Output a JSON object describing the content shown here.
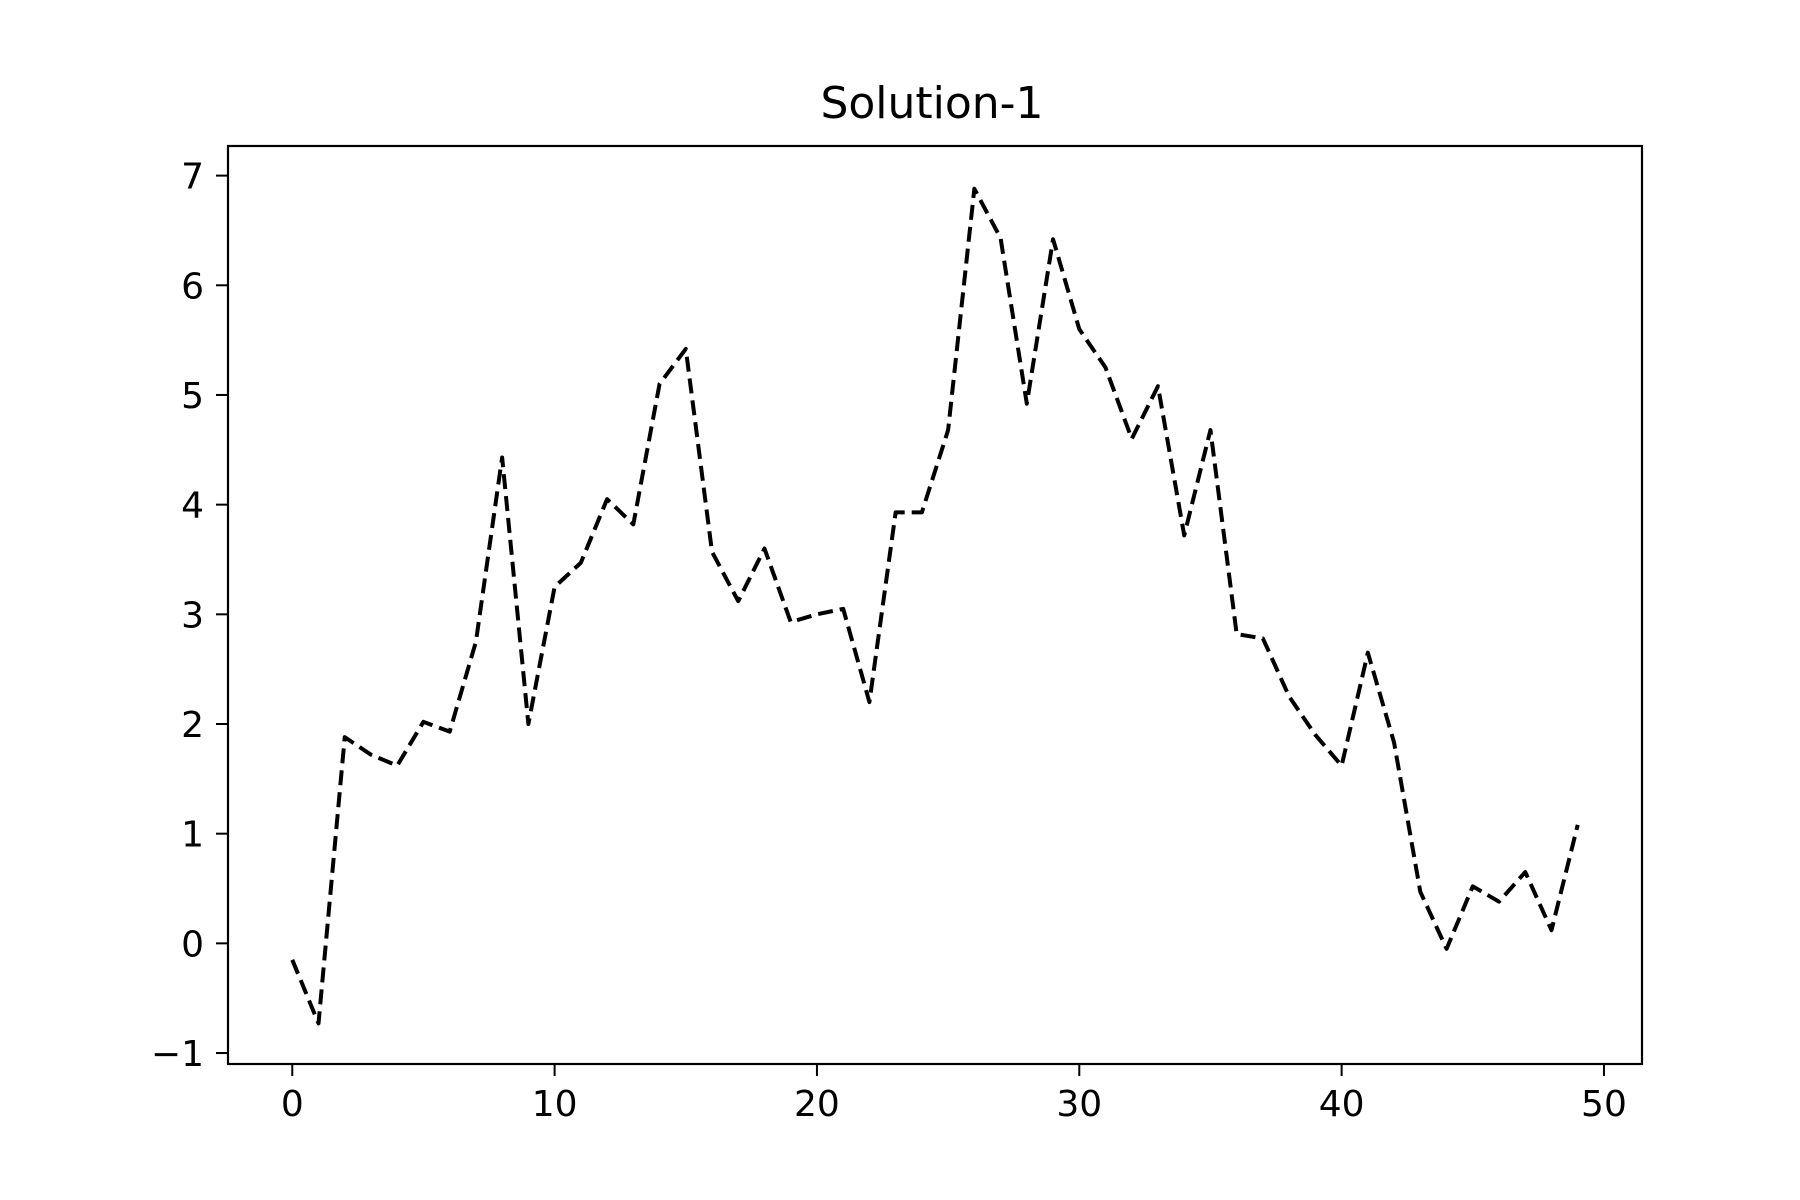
{
  "chart_data": {
    "type": "line",
    "title": "Solution-1",
    "xlabel": "",
    "ylabel": "",
    "xlim": [
      -2.45,
      51.45
    ],
    "ylim": [
      -1.1,
      7.27
    ],
    "xticks": [
      0,
      10,
      20,
      30,
      40,
      50
    ],
    "yticks": [
      -1,
      0,
      1,
      2,
      3,
      4,
      5,
      6,
      7
    ],
    "xtick_labels": [
      "0",
      "10",
      "20",
      "30",
      "40",
      "50"
    ],
    "ytick_labels": [
      "−1",
      "0",
      "1",
      "2",
      "3",
      "4",
      "5",
      "6",
      "7"
    ],
    "grid": false,
    "legend": "none",
    "series": [
      {
        "color": "#000000",
        "line_style": "dashed",
        "x": [
          0,
          1,
          2,
          3,
          4,
          5,
          6,
          7,
          8,
          9,
          10,
          11,
          12,
          13,
          14,
          15,
          16,
          17,
          18,
          19,
          20,
          21,
          22,
          23,
          24,
          25,
          26,
          27,
          28,
          29,
          30,
          31,
          32,
          33,
          34,
          35,
          36,
          37,
          38,
          39,
          40,
          41,
          42,
          43,
          44,
          45,
          46,
          47,
          48,
          49
        ],
        "values": [
          -0.15,
          -0.73,
          1.88,
          1.72,
          1.62,
          2.02,
          1.93,
          2.75,
          4.43,
          2.0,
          3.25,
          3.47,
          4.05,
          3.82,
          5.1,
          5.42,
          3.57,
          3.12,
          3.6,
          2.93,
          3.0,
          3.05,
          2.2,
          3.93,
          3.93,
          4.68,
          6.88,
          6.43,
          4.92,
          6.42,
          5.6,
          5.25,
          4.6,
          5.08,
          3.72,
          4.68,
          2.82,
          2.78,
          2.25,
          1.9,
          1.62,
          2.65,
          1.83,
          0.47,
          -0.05,
          0.52,
          0.38,
          0.65,
          0.12,
          1.08
        ]
      }
    ]
  }
}
